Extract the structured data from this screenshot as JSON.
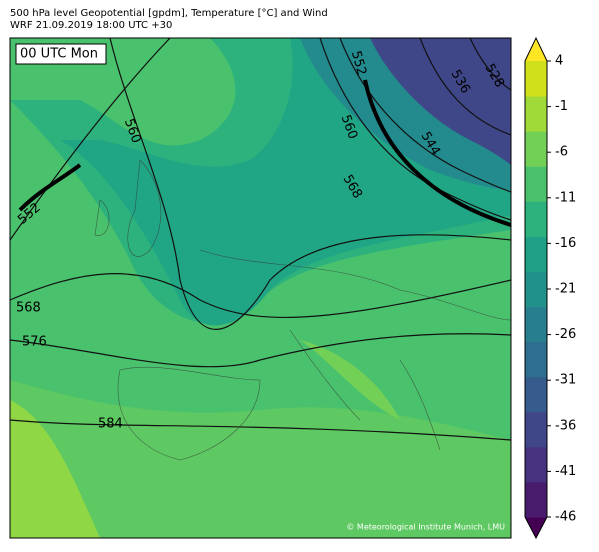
{
  "header": {
    "title": "500 hPa level Geopotential [gpdm], Temperature [°C] and Wind",
    "subtitle": "WRF 21.09.2019 18:00 UTC +30"
  },
  "map": {
    "time_label": "00 UTC Mon",
    "credit": "© Meteorological Institute Munich, LMU",
    "contour_labels": [
      "552",
      "560",
      "568",
      "576",
      "584",
      "552",
      "560",
      "568",
      "544",
      "536",
      "528"
    ]
  },
  "colorbar": {
    "ticks": [
      4,
      -1,
      -6,
      -11,
      -16,
      -21,
      -26,
      -31,
      -36,
      -41,
      -46
    ],
    "colors": [
      "#440154",
      "#481b6d",
      "#46327e",
      "#3f4788",
      "#365c8d",
      "#2e6e8e",
      "#277f8e",
      "#21918c",
      "#1fa187",
      "#2db27d",
      "#4ac16d",
      "#73d056",
      "#a0da39",
      "#d0e11c",
      "#fde725"
    ]
  }
}
